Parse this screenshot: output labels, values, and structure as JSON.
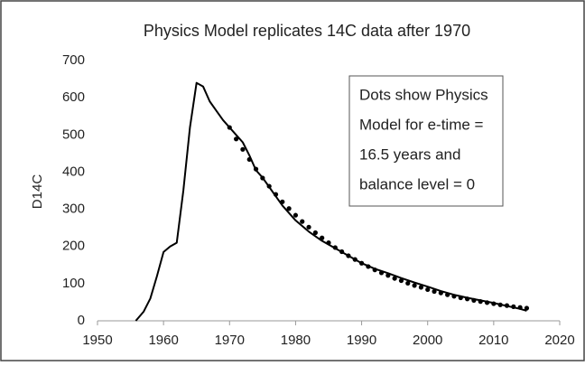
{
  "chart_data": {
    "type": "line",
    "title": "Physics Model replicates 14C data after 1970",
    "y_label": "D14C",
    "annotation": [
      "Dots show Physics",
      "Model for e-time =",
      "16.5 years and",
      "balance level = 0"
    ],
    "xlim": [
      1950,
      2020
    ],
    "xticks": [
      1950,
      1960,
      1970,
      1980,
      1990,
      2000,
      2010,
      2020
    ],
    "ylim": [
      0,
      700
    ],
    "yticks": [
      0,
      100,
      200,
      300,
      400,
      500,
      600,
      700
    ],
    "grid": false,
    "series": [
      {
        "color": "#000000",
        "style": "line",
        "x": [
          1955.8,
          1957,
          1958,
          1959,
          1960,
          1961,
          1962,
          1963,
          1964,
          1965,
          1966,
          1967,
          1968,
          1969,
          1970,
          1971,
          1972,
          1973,
          1974,
          1975,
          1976,
          1977,
          1978,
          1979,
          1980,
          1982,
          1984,
          1986,
          1988,
          1990,
          1992,
          1994,
          1996,
          1998,
          2000,
          2002,
          2004,
          2006,
          2008,
          2010,
          2012,
          2014,
          2015
        ],
        "values": [
          0,
          25,
          60,
          120,
          185,
          200,
          210,
          350,
          520,
          640,
          630,
          590,
          565,
          540,
          520,
          500,
          480,
          445,
          405,
          385,
          360,
          335,
          310,
          290,
          270,
          240,
          215,
          195,
          175,
          155,
          140,
          128,
          115,
          103,
          92,
          80,
          70,
          62,
          55,
          48,
          40,
          32,
          27
        ]
      },
      {
        "color": "#000000",
        "style": "dots",
        "x": [
          1970,
          1971,
          1972,
          1973,
          1974,
          1975,
          1976,
          1977,
          1978,
          1979,
          1980,
          1981,
          1982,
          1983,
          1984,
          1985,
          1986,
          1987,
          1988,
          1989,
          1990,
          1991,
          1992,
          1993,
          1994,
          1995,
          1996,
          1997,
          1998,
          1999,
          2000,
          2001,
          2002,
          2003,
          2004,
          2005,
          2006,
          2007,
          2008,
          2009,
          2010,
          2011,
          2012,
          2013,
          2014,
          2015
        ],
        "values": [
          520,
          489,
          461,
          434,
          408,
          384,
          362,
          340,
          320,
          302,
          284,
          267,
          252,
          237,
          223,
          210,
          197,
          186,
          175,
          165,
          155,
          146,
          137,
          129,
          122,
          114,
          108,
          101,
          95,
          90,
          84,
          79,
          75,
          70,
          66,
          62,
          59,
          55,
          52,
          49,
          46,
          43,
          41,
          38,
          36,
          34
        ]
      }
    ]
  }
}
